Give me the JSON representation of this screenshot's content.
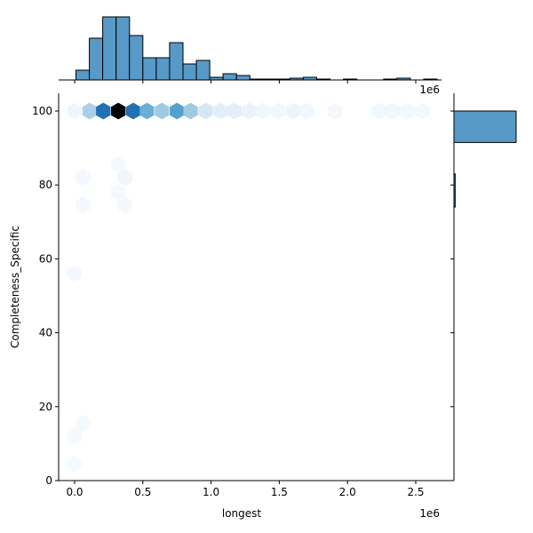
{
  "chart_data": {
    "type": "hexbin",
    "kind": "jointplot",
    "xlabel": "longest",
    "ylabel": "Completeness_Specific",
    "x_offset_label": "1e6",
    "top_offset_label": "1e6",
    "xlim": [
      -0.1,
      2.7
    ],
    "ylim": [
      0,
      105
    ],
    "x_ticks": [
      "0.0",
      "0.5",
      "1.0",
      "1.5",
      "2.0",
      "2.5"
    ],
    "y_ticks": [
      "0",
      "20",
      "40",
      "60",
      "80",
      "100"
    ],
    "colormap": "Blues",
    "hexbins": [
      {
        "x": 0.0,
        "y": 100,
        "c": 0.05
      },
      {
        "x": 0.11,
        "y": 100,
        "c": 0.4
      },
      {
        "x": 0.21,
        "y": 100,
        "c": 0.8
      },
      {
        "x": 0.32,
        "y": 100,
        "c": 1.0
      },
      {
        "x": 0.43,
        "y": 100,
        "c": 0.8
      },
      {
        "x": 0.53,
        "y": 100,
        "c": 0.55
      },
      {
        "x": 0.64,
        "y": 100,
        "c": 0.45
      },
      {
        "x": 0.75,
        "y": 100,
        "c": 0.6
      },
      {
        "x": 0.85,
        "y": 100,
        "c": 0.45
      },
      {
        "x": 0.96,
        "y": 100,
        "c": 0.2
      },
      {
        "x": 1.07,
        "y": 100,
        "c": 0.12
      },
      {
        "x": 1.17,
        "y": 100,
        "c": 0.12
      },
      {
        "x": 1.28,
        "y": 100,
        "c": 0.08
      },
      {
        "x": 1.38,
        "y": 100,
        "c": 0.04
      },
      {
        "x": 1.49,
        "y": 100,
        "c": 0.04
      },
      {
        "x": 1.6,
        "y": 100,
        "c": 0.06
      },
      {
        "x": 1.7,
        "y": 100,
        "c": 0.04
      },
      {
        "x": 1.91,
        "y": 100,
        "c": 0.03
      },
      {
        "x": 2.23,
        "y": 100,
        "c": 0.04
      },
      {
        "x": 2.33,
        "y": 100,
        "c": 0.04
      },
      {
        "x": 2.44,
        "y": 100,
        "c": 0.03
      },
      {
        "x": 2.55,
        "y": 100,
        "c": 0.03
      },
      {
        "x": 0.06,
        "y": 82,
        "c": 0.03
      },
      {
        "x": 0.06,
        "y": 74.5,
        "c": 0.03
      },
      {
        "x": 0.32,
        "y": 85.5,
        "c": 0.02
      },
      {
        "x": 0.37,
        "y": 82,
        "c": 0.05
      },
      {
        "x": 0.32,
        "y": 78,
        "c": 0.02
      },
      {
        "x": 0.37,
        "y": 74.5,
        "c": 0.03
      },
      {
        "x": 0.0,
        "y": 56,
        "c": 0.03
      },
      {
        "x": 0.06,
        "y": 15.5,
        "c": 0.02
      },
      {
        "x": 0.0,
        "y": 12,
        "c": 0.02
      },
      {
        "x": 0.0,
        "y": 4.5,
        "c": 0.02
      }
    ],
    "top_histogram": {
      "bin_width": 0.098,
      "bin_start": 0.01,
      "heights": [
        11,
        47,
        71,
        71,
        50,
        25,
        25,
        42,
        18,
        22,
        3,
        7,
        5,
        1,
        1,
        1,
        2,
        3,
        1,
        0,
        1,
        0,
        0,
        1,
        2,
        0,
        1
      ],
      "color": "#5799c7"
    },
    "right_histogram": {
      "bins": [
        {
          "y_from": 91.5,
          "y_to": 100,
          "width": 1.0
        },
        {
          "y_from": 74,
          "y_to": 83,
          "width": 0.02
        }
      ],
      "color": "#5799c7"
    }
  }
}
